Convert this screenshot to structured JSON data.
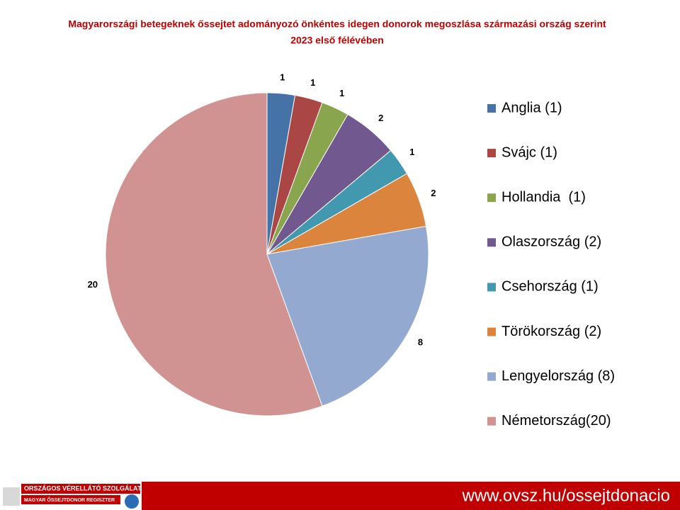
{
  "chart_data": {
    "type": "pie",
    "title": [
      "Magyarországi betegeknek  őssejtet adományozó önkéntes idegen donorok megoszlása származási ország szerint",
      "2023 első félévében"
    ],
    "categories": [
      "Anglia (1)",
      "Svájc (1)",
      "Hollandia  (1)",
      "Olaszország (2)",
      "Csehország (1)",
      "Törökország (2)",
      "Lengyelország (8)",
      "Németország(20)"
    ],
    "values": [
      1,
      1,
      1,
      2,
      1,
      2,
      8,
      20
    ],
    "colors": [
      "#4572a7",
      "#aa4643",
      "#89a54e",
      "#71588f",
      "#4198af",
      "#db843d",
      "#93a9cf",
      "#d19392"
    ],
    "legend": "right"
  },
  "footer": {
    "org": "ORSZÁGOS VÉRELLÁTÓ SZOLGÁLAT",
    "registry": "MAGYAR ŐSSEJTDONOR REGISZTER",
    "url": "www.ovsz.hu/ossejtdonacio"
  }
}
